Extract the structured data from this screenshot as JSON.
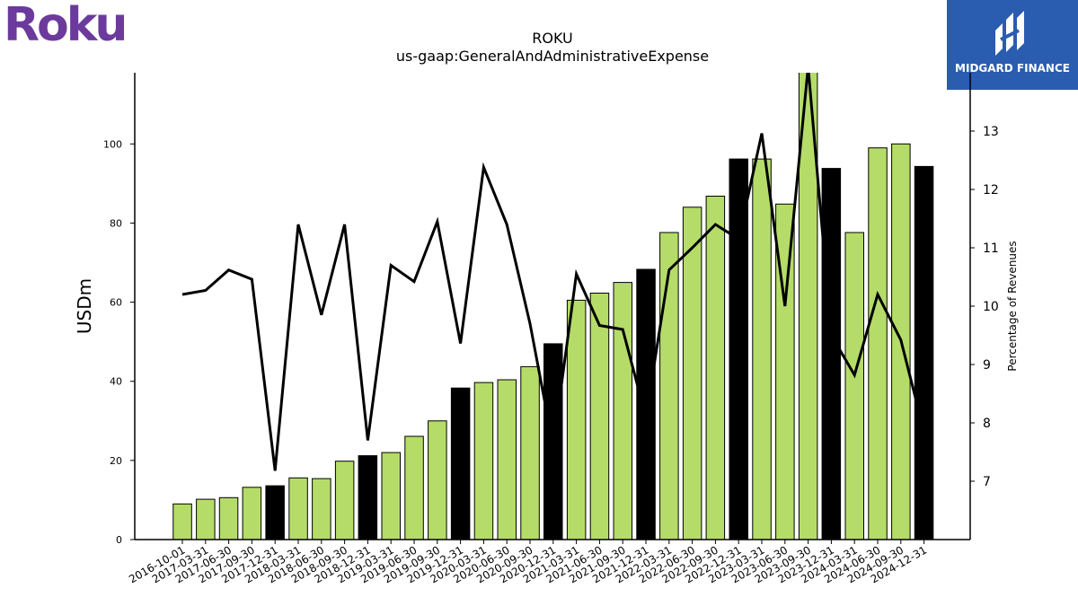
{
  "logos": {
    "left_text": "Roku",
    "right_text": "MIDGARD FINANCE"
  },
  "colors": {
    "bar_default": "#b5dc68",
    "bar_q4": "#000000",
    "line": "#000000",
    "right_logo_bg": "#2a5cb0",
    "left_logo": "#6c3a9c"
  },
  "chart_data": {
    "type": "bar",
    "title": "ROKU",
    "subtitle": "us-gaap:GeneralAndAdministrativeExpense",
    "ylabel": "USDm",
    "y2label": "Percentage of Revenues",
    "ylim": [
      0,
      118
    ],
    "y2lim": [
      6,
      14
    ],
    "yticks": [
      0,
      20,
      40,
      60,
      80,
      100
    ],
    "y2ticks": [
      7,
      8,
      9,
      10,
      11,
      12,
      13
    ],
    "categories": [
      "2016-10-01",
      "2017-03-31",
      "2017-06-30",
      "2017-09-30",
      "2017-12-31",
      "2018-03-31",
      "2018-06-30",
      "2018-09-30",
      "2018-12-31",
      "2019-03-31",
      "2019-06-30",
      "2019-09-30",
      "2019-12-31",
      "2020-03-31",
      "2020-06-30",
      "2020-09-30",
      "2020-12-31",
      "2021-03-31",
      "2021-06-30",
      "2021-09-30",
      "2021-12-31",
      "2022-03-31",
      "2022-06-30",
      "2022-09-30",
      "2022-12-31",
      "2023-03-31",
      "2023-06-30",
      "2023-09-30",
      "2023-12-31",
      "2024-03-31",
      "2024-06-30",
      "2024-09-30",
      "2024-12-31"
    ],
    "series": [
      {
        "type": "bar",
        "values": [
          9,
          10.2,
          10.6,
          13.2,
          13.6,
          15.6,
          15.4,
          19.8,
          21.2,
          22,
          26.1,
          30,
          38.3,
          39.7,
          40.4,
          43.7,
          49.5,
          60.5,
          62.3,
          65,
          68.3,
          77.6,
          84,
          86.8,
          96.2,
          96.2,
          84.8,
          118.5,
          93.8,
          77.6,
          99,
          100,
          94.3
        ],
        "highlight": [
          false,
          false,
          false,
          false,
          true,
          false,
          false,
          false,
          true,
          false,
          false,
          false,
          true,
          false,
          false,
          false,
          true,
          false,
          false,
          false,
          true,
          false,
          false,
          false,
          true,
          false,
          false,
          false,
          true,
          false,
          false,
          false,
          true
        ]
      },
      {
        "type": "line",
        "axis": "right",
        "values": [
          10.2,
          10.27,
          10.62,
          10.46,
          7.18,
          11.4,
          9.85,
          11.4,
          7.7,
          10.7,
          10.42,
          11.45,
          9.36,
          12.38,
          11.4,
          9.7,
          7.6,
          10.55,
          9.67,
          9.6,
          8.1,
          10.62,
          11.0,
          11.4,
          11.15,
          12.96,
          10.0,
          14.1,
          9.5,
          8.82,
          10.2,
          9.42,
          7.85
        ]
      }
    ],
    "grid": false,
    "legend": "none"
  }
}
